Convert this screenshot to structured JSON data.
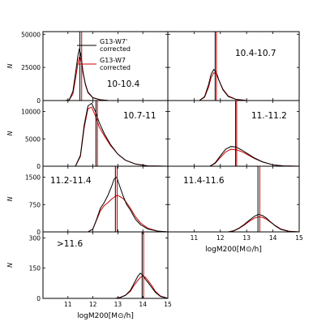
{
  "chart_data": {
    "type": "line",
    "x_axis_label": "logM200[M⊙/h]",
    "y_axis_label": "N",
    "xlim": [
      10,
      15
    ],
    "x_ticks": [
      11,
      12,
      13,
      14,
      15
    ],
    "legend": {
      "placement": "top-right of first panel",
      "entries": [
        {
          "label_line1": "G13-W7'",
          "label_line2": "corrected",
          "color": "#000000"
        },
        {
          "label_line1": "G13-W7",
          "label_line2": "corrected",
          "color": "#cc0000"
        }
      ]
    },
    "panels": [
      {
        "label": "10-10.4",
        "ylim": [
          0,
          52000
        ],
        "y_ticks": [
          0,
          25000,
          50000
        ],
        "y_tick_labels": [
          "0",
          "25000",
          "50000"
        ],
        "vlines": [
          11.48,
          11.55
        ],
        "series": [
          {
            "name": "G13-W7' corrected",
            "color": "#000000",
            "x": [
              10.0,
              10.9,
              11.05,
              11.2,
              11.3,
              11.4,
              11.45,
              11.5,
              11.55,
              11.6,
              11.7,
              11.8,
              12.0,
              12.3,
              12.6,
              13.0,
              13.5,
              15.0
            ],
            "y": [
              0,
              0,
              500,
              7000,
              20000,
              34000,
              38500,
              36000,
              30000,
              22000,
              12000,
              6000,
              2000,
              500,
              100,
              0,
              0,
              0
            ]
          },
          {
            "name": "G13-W7 corrected",
            "color": "#cc0000",
            "x": [
              10.0,
              10.9,
              11.05,
              11.2,
              11.3,
              11.4,
              11.45,
              11.5,
              11.55,
              11.6,
              11.7,
              11.8,
              12.0,
              12.3,
              12.6,
              13.0,
              13.5,
              15.0
            ],
            "y": [
              0,
              0,
              400,
              5000,
              16000,
              28000,
              32500,
              32000,
              28000,
              21000,
              12500,
              6500,
              2200,
              600,
              100,
              0,
              0,
              0
            ]
          }
        ]
      },
      {
        "label": "10.4-10.7",
        "ylim": [
          0,
          52000
        ],
        "y_ticks": [
          0,
          25000,
          50000
        ],
        "y_tick_labels": [],
        "vlines": [
          11.8,
          11.85
        ],
        "series": [
          {
            "name": "G13-W7' corrected",
            "color": "#000000",
            "x": [
              10.0,
              11.2,
              11.4,
              11.55,
              11.65,
              11.75,
              11.85,
              11.95,
              12.1,
              12.3,
              12.6,
              13.0,
              15.0
            ],
            "y": [
              0,
              0,
              3000,
              12000,
              20000,
              23500,
              21000,
              15000,
              8000,
              3000,
              800,
              100,
              0
            ]
          },
          {
            "name": "G13-W7 corrected",
            "color": "#cc0000",
            "x": [
              10.0,
              11.2,
              11.4,
              11.55,
              11.65,
              11.75,
              11.85,
              11.95,
              12.1,
              12.3,
              12.6,
              13.0,
              15.0
            ],
            "y": [
              0,
              0,
              2500,
              10000,
              17500,
              21000,
              20000,
              15000,
              8500,
              3500,
              900,
              100,
              0
            ]
          }
        ]
      },
      {
        "label": "10.7-11",
        "ylim": [
          0,
          12000
        ],
        "y_ticks": [
          0,
          5000,
          10000
        ],
        "y_tick_labels": [
          "0",
          "5000",
          "10000"
        ],
        "vlines": [
          12.12,
          12.18
        ],
        "series": [
          {
            "name": "G13-W7' corrected",
            "color": "#000000",
            "x": [
              10.0,
              11.3,
              11.5,
              11.65,
              11.8,
              11.95,
              12.1,
              12.25,
              12.45,
              12.7,
              13.0,
              13.3,
              13.7,
              14.2,
              15.0
            ],
            "y": [
              0,
              0,
              2000,
              7500,
              11000,
              11500,
              10000,
              8000,
              6000,
              4000,
              2200,
              1100,
              400,
              50,
              0
            ]
          },
          {
            "name": "G13-W7 corrected",
            "color": "#cc0000",
            "x": [
              10.0,
              11.3,
              11.5,
              11.65,
              11.8,
              11.95,
              12.1,
              12.25,
              12.45,
              12.7,
              13.0,
              13.3,
              13.7,
              14.2,
              15.0
            ],
            "y": [
              0,
              0,
              1800,
              7000,
              10500,
              10800,
              9200,
              7200,
              5600,
              3800,
              2200,
              1100,
              400,
              50,
              0
            ]
          }
        ]
      },
      {
        "label": "11.-11.2",
        "ylim": [
          0,
          12000
        ],
        "y_ticks": [
          0,
          5000,
          10000
        ],
        "y_tick_labels": [],
        "vlines": [
          12.58,
          12.62
        ],
        "series": [
          {
            "name": "G13-W7' corrected",
            "color": "#000000",
            "x": [
              10.0,
              11.6,
              11.8,
              12.0,
              12.2,
              12.4,
              12.6,
              12.8,
              13.0,
              13.3,
              13.6,
              14.0,
              14.4,
              15.0
            ],
            "y": [
              0,
              0,
              600,
              1900,
              3100,
              3600,
              3500,
              3000,
              2400,
              1500,
              800,
              250,
              50,
              0
            ]
          },
          {
            "name": "G13-W7 corrected",
            "color": "#cc0000",
            "x": [
              10.0,
              11.6,
              11.8,
              12.0,
              12.2,
              12.4,
              12.6,
              12.8,
              13.0,
              13.3,
              13.6,
              14.0,
              14.4,
              15.0
            ],
            "y": [
              0,
              0,
              500,
              1600,
              2600,
              3100,
              3000,
              2700,
              2200,
              1400,
              800,
              250,
              50,
              0
            ]
          }
        ]
      },
      {
        "label": "11.2-11.4",
        "ylim": [
          0,
          1800
        ],
        "y_ticks": [
          0,
          750,
          1500
        ],
        "y_tick_labels": [
          "0",
          "750",
          "1500"
        ],
        "vlines": [
          12.9,
          12.97
        ],
        "series": [
          {
            "name": "G13-W7' corrected",
            "color": "#000000",
            "x": [
              10.0,
              11.8,
              12.0,
              12.15,
              12.3,
              12.45,
              12.6,
              12.75,
              12.85,
              12.95,
              13.05,
              13.2,
              13.35,
              13.5,
              13.7,
              13.9,
              14.2,
              14.6,
              15.0
            ],
            "y": [
              0,
              0,
              80,
              350,
              650,
              800,
              1000,
              1250,
              1450,
              1500,
              1300,
              1000,
              750,
              600,
              350,
              200,
              80,
              20,
              0
            ]
          },
          {
            "name": "G13-W7 corrected",
            "color": "#cc0000",
            "x": [
              10.0,
              11.8,
              12.0,
              12.15,
              12.3,
              12.45,
              12.6,
              12.75,
              12.85,
              12.95,
              13.05,
              13.2,
              13.35,
              13.5,
              13.7,
              13.9,
              14.2,
              14.6,
              15.0
            ],
            "y": [
              0,
              0,
              80,
              330,
              580,
              720,
              800,
              900,
              950,
              1000,
              980,
              920,
              800,
              650,
              420,
              250,
              100,
              20,
              0
            ]
          }
        ]
      },
      {
        "label": "11.4-11.6",
        "ylim": [
          0,
          1800
        ],
        "y_ticks": [
          0,
          750,
          1500
        ],
        "y_tick_labels": [],
        "vlines": [
          13.43,
          13.5
        ],
        "series": [
          {
            "name": "G13-W7' corrected",
            "color": "#000000",
            "x": [
              10.0,
              12.3,
              12.5,
              12.7,
              12.9,
              13.1,
              13.3,
              13.45,
              13.6,
              13.75,
              13.9,
              14.1,
              14.3,
              14.6,
              15.0
            ],
            "y": [
              0,
              0,
              30,
              100,
              200,
              320,
              430,
              480,
              450,
              380,
              280,
              160,
              70,
              15,
              0
            ]
          },
          {
            "name": "G13-W7 corrected",
            "color": "#cc0000",
            "x": [
              10.0,
              12.3,
              12.5,
              12.7,
              12.9,
              13.1,
              13.3,
              13.45,
              13.6,
              13.75,
              13.9,
              14.1,
              14.3,
              14.6,
              15.0
            ],
            "y": [
              0,
              0,
              25,
              90,
              180,
              290,
              380,
              410,
              400,
              350,
              270,
              170,
              80,
              20,
              0
            ]
          }
        ]
      },
      {
        "label": ">11.6",
        "ylim": [
          0,
          330
        ],
        "y_ticks": [
          0,
          150,
          300
        ],
        "y_tick_labels": [
          "0",
          "150",
          "300"
        ],
        "vlines": [
          13.97,
          14.03
        ],
        "series": [
          {
            "name": "G13-W7' corrected",
            "color": "#000000",
            "x": [
              10.0,
              12.9,
              13.1,
              13.3,
              13.5,
              13.65,
              13.8,
              13.9,
              14.0,
              14.1,
              14.2,
              14.35,
              14.5,
              14.7,
              15.0
            ],
            "y": [
              0,
              0,
              5,
              15,
              40,
              75,
              110,
              125,
              115,
              95,
              80,
              55,
              30,
              10,
              0
            ]
          },
          {
            "name": "G13-W7 corrected",
            "color": "#cc0000",
            "x": [
              10.0,
              12.9,
              13.1,
              13.3,
              13.5,
              13.65,
              13.8,
              13.9,
              14.0,
              14.1,
              14.2,
              14.35,
              14.5,
              14.7,
              15.0
            ],
            "y": [
              0,
              0,
              5,
              15,
              35,
              65,
              90,
              105,
              110,
              105,
              90,
              65,
              35,
              12,
              0
            ]
          }
        ]
      }
    ]
  }
}
